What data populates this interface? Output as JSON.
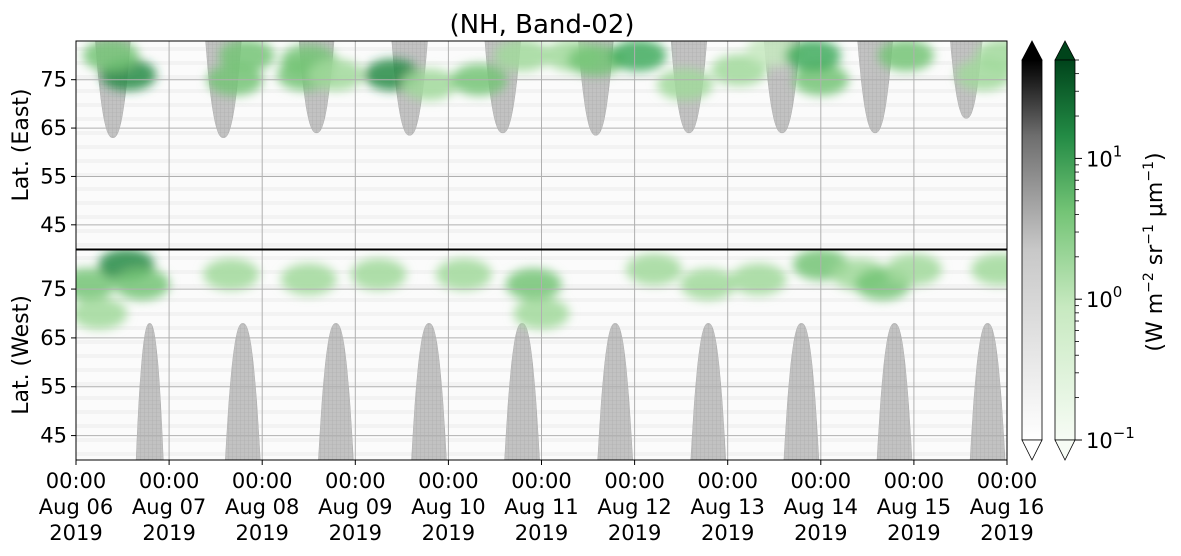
{
  "chart_data": {
    "type": "heatmap",
    "title": "(NH, Band-02)",
    "panels": [
      {
        "name": "east",
        "ylabel": "Lat. (East)",
        "yticks": [
          "45",
          "55",
          "65",
          "75"
        ],
        "ylim": [
          40,
          83
        ]
      },
      {
        "name": "west",
        "ylabel": "Lat. (West)",
        "yticks": [
          "75",
          "65",
          "55",
          "45"
        ],
        "ylim": [
          83,
          40
        ]
      }
    ],
    "x_ticks": [
      {
        "time": "00:00",
        "date": "Aug 06",
        "year": "2019"
      },
      {
        "time": "00:00",
        "date": "Aug 07",
        "year": "2019"
      },
      {
        "time": "00:00",
        "date": "Aug 08",
        "year": "2019"
      },
      {
        "time": "00:00",
        "date": "Aug 09",
        "year": "2019"
      },
      {
        "time": "00:00",
        "date": "Aug 10",
        "year": "2019"
      },
      {
        "time": "00:00",
        "date": "Aug 11",
        "year": "2019"
      },
      {
        "time": "00:00",
        "date": "Aug 12",
        "year": "2019"
      },
      {
        "time": "00:00",
        "date": "Aug 13",
        "year": "2019"
      },
      {
        "time": "00:00",
        "date": "Aug 14",
        "year": "2019"
      },
      {
        "time": "00:00",
        "date": "Aug 15",
        "year": "2019"
      },
      {
        "time": "00:00",
        "date": "Aug 16",
        "year": "2019"
      }
    ],
    "xlim": [
      "2019-08-06 00:00",
      "2019-08-16 00:00"
    ],
    "grid": true,
    "night_mask_color": "#bdbdbd",
    "night_regions": {
      "east": [
        {
          "center": "2019-08-06 09:30",
          "halfwidth_hours": 4.5,
          "extent_lat": 63
        },
        {
          "center": "2019-08-07 14:00",
          "halfwidth_hours": 4.6,
          "extent_lat": 63
        },
        {
          "center": "2019-08-08 14:00",
          "halfwidth_hours": 4.5,
          "extent_lat": 64
        },
        {
          "center": "2019-08-09 14:00",
          "halfwidth_hours": 4.6,
          "extent_lat": 63.5
        },
        {
          "center": "2019-08-10 14:00",
          "halfwidth_hours": 4.6,
          "extent_lat": 64
        },
        {
          "center": "2019-08-11 14:00",
          "halfwidth_hours": 4.5,
          "extent_lat": 63.5
        },
        {
          "center": "2019-08-12 14:00",
          "halfwidth_hours": 4.6,
          "extent_lat": 64
        },
        {
          "center": "2019-08-13 14:00",
          "halfwidth_hours": 4.6,
          "extent_lat": 64
        },
        {
          "center": "2019-08-14 14:00",
          "halfwidth_hours": 4.5,
          "extent_lat": 64
        },
        {
          "center": "2019-08-15 13:30",
          "halfwidth_hours": 4.1,
          "extent_lat": 67
        }
      ],
      "west": [
        {
          "center": "2019-08-06 19:00",
          "halfwidth_hours": 3.5,
          "extent_lat": 68
        },
        {
          "center": "2019-08-07 19:00",
          "halfwidth_hours": 4.5,
          "extent_lat": 68
        },
        {
          "center": "2019-08-08 19:00",
          "halfwidth_hours": 4.5,
          "extent_lat": 68
        },
        {
          "center": "2019-08-09 19:00",
          "halfwidth_hours": 4.5,
          "extent_lat": 68
        },
        {
          "center": "2019-08-10 19:00",
          "halfwidth_hours": 4.5,
          "extent_lat": 68
        },
        {
          "center": "2019-08-11 19:00",
          "halfwidth_hours": 4.5,
          "extent_lat": 68
        },
        {
          "center": "2019-08-12 19:00",
          "halfwidth_hours": 4.5,
          "extent_lat": 68
        },
        {
          "center": "2019-08-13 19:00",
          "halfwidth_hours": 4.5,
          "extent_lat": 68
        },
        {
          "center": "2019-08-14 19:00",
          "halfwidth_hours": 4.5,
          "extent_lat": 68
        },
        {
          "center": "2019-08-15 19:00",
          "halfwidth_hours": 4.5,
          "extent_lat": 68
        }
      ]
    },
    "radiance_blobs": [
      {
        "panel": "east",
        "time": "2019-08-06 13:30",
        "lat": 76,
        "intensity": 0.9
      },
      {
        "panel": "east",
        "time": "2019-08-06 09:00",
        "lat": 80,
        "intensity": 0.55
      },
      {
        "panel": "east",
        "time": "2019-08-07 17:00",
        "lat": 75,
        "intensity": 0.6
      },
      {
        "panel": "east",
        "time": "2019-08-07 20:00",
        "lat": 80,
        "intensity": 0.55
      },
      {
        "panel": "east",
        "time": "2019-08-08 12:00",
        "lat": 79,
        "intensity": 0.5
      },
      {
        "panel": "east",
        "time": "2019-08-08 11:00",
        "lat": 76,
        "intensity": 0.5
      },
      {
        "panel": "east",
        "time": "2019-08-09 09:30",
        "lat": 76,
        "intensity": 0.85
      },
      {
        "panel": "east",
        "time": "2019-08-08 19:00",
        "lat": 76,
        "intensity": 0.45
      },
      {
        "panel": "east",
        "time": "2019-08-09 19:00",
        "lat": 74,
        "intensity": 0.35
      },
      {
        "panel": "east",
        "time": "2019-08-10 08:00",
        "lat": 75,
        "intensity": 0.6
      },
      {
        "panel": "east",
        "time": "2019-08-10 19:00",
        "lat": 80,
        "intensity": 0.45
      },
      {
        "panel": "east",
        "time": "2019-08-11 08:00",
        "lat": 80,
        "intensity": 0.45
      },
      {
        "panel": "east",
        "time": "2019-08-11 14:00",
        "lat": 79,
        "intensity": 0.5
      },
      {
        "panel": "east",
        "time": "2019-08-12 01:00",
        "lat": 80,
        "intensity": 0.8
      },
      {
        "panel": "east",
        "time": "2019-08-12 13:00",
        "lat": 74,
        "intensity": 0.4
      },
      {
        "panel": "east",
        "time": "2019-08-13 03:00",
        "lat": 77,
        "intensity": 0.45
      },
      {
        "panel": "east",
        "time": "2019-08-13 12:00",
        "lat": 81,
        "intensity": 0.3
      },
      {
        "panel": "east",
        "time": "2019-08-14 00:00",
        "lat": 75,
        "intensity": 0.55
      },
      {
        "panel": "east",
        "time": "2019-08-13 22:00",
        "lat": 80,
        "intensity": 0.7
      },
      {
        "panel": "east",
        "time": "2019-08-14 22:00",
        "lat": 80,
        "intensity": 0.55
      },
      {
        "panel": "east",
        "time": "2019-08-15 18:00",
        "lat": 76,
        "intensity": 0.45
      },
      {
        "panel": "east",
        "time": "2019-08-15 23:00",
        "lat": 80,
        "intensity": 0.4
      },
      {
        "panel": "west",
        "time": "2019-08-06 03:00",
        "lat": 76,
        "intensity": 0.55
      },
      {
        "panel": "west",
        "time": "2019-08-06 06:00",
        "lat": 70,
        "intensity": 0.35
      },
      {
        "panel": "west",
        "time": "2019-08-06 13:00",
        "lat": 80,
        "intensity": 0.85
      },
      {
        "panel": "west",
        "time": "2019-08-06 17:00",
        "lat": 76,
        "intensity": 0.5
      },
      {
        "panel": "west",
        "time": "2019-08-07 16:00",
        "lat": 78,
        "intensity": 0.4
      },
      {
        "panel": "west",
        "time": "2019-08-08 12:00",
        "lat": 77,
        "intensity": 0.35
      },
      {
        "panel": "west",
        "time": "2019-08-09 06:00",
        "lat": 78,
        "intensity": 0.45
      },
      {
        "panel": "west",
        "time": "2019-08-10 04:00",
        "lat": 78,
        "intensity": 0.45
      },
      {
        "panel": "west",
        "time": "2019-08-10 22:00",
        "lat": 76,
        "intensity": 0.5
      },
      {
        "panel": "west",
        "time": "2019-08-11 00:00",
        "lat": 70,
        "intensity": 0.35
      },
      {
        "panel": "west",
        "time": "2019-08-12 05:00",
        "lat": 79,
        "intensity": 0.45
      },
      {
        "panel": "west",
        "time": "2019-08-12 19:00",
        "lat": 76,
        "intensity": 0.35
      },
      {
        "panel": "west",
        "time": "2019-08-13 08:00",
        "lat": 77,
        "intensity": 0.4
      },
      {
        "panel": "west",
        "time": "2019-08-14 00:00",
        "lat": 80,
        "intensity": 0.55
      },
      {
        "panel": "west",
        "time": "2019-08-14 10:00",
        "lat": 78,
        "intensity": 0.4
      },
      {
        "panel": "west",
        "time": "2019-08-14 16:00",
        "lat": 76,
        "intensity": 0.5
      },
      {
        "panel": "west",
        "time": "2019-08-15 00:00",
        "lat": 79,
        "intensity": 0.45
      },
      {
        "panel": "west",
        "time": "2019-08-15 22:00",
        "lat": 79,
        "intensity": 0.35
      }
    ],
    "colorbars": [
      {
        "name": "gray",
        "colors": [
          "#ffffff",
          "#000000"
        ],
        "extend": "both"
      },
      {
        "name": "green",
        "colors": [
          "#f7fcf5",
          "#00441b"
        ],
        "extend": "both",
        "scale": "log",
        "range": [
          0.1,
          50
        ],
        "ticks": [
          {
            "base": "10",
            "exp": "1",
            "value": 10
          },
          {
            "base": "10",
            "exp": "0",
            "value": 1
          },
          {
            "base": "10",
            "exp": "−1",
            "value": 0.1
          }
        ],
        "label": {
          "prefix": "(W m",
          "sup1": "−2",
          "mid": " sr",
          "sup2": "−1",
          "mu": " μm",
          "sup3": "−1",
          "suffix": ")"
        }
      }
    ]
  }
}
